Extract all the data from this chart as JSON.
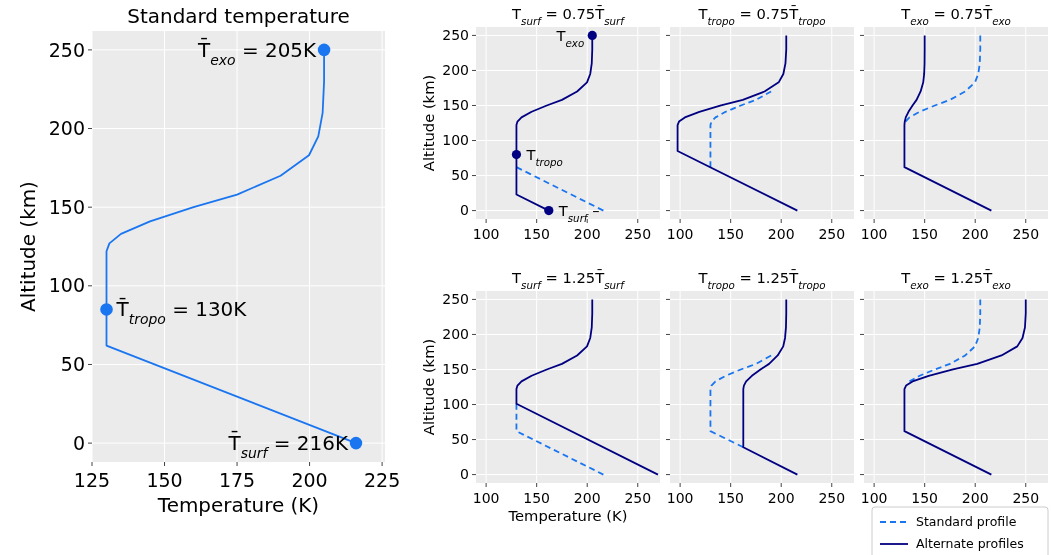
{
  "chart_data": [
    {
      "type": "line",
      "title": "Standard temperature",
      "xlabel": "Temperature (K)",
      "ylabel": "Altitude (km)",
      "xlim": [
        125,
        226
      ],
      "ylim": [
        -12,
        262
      ],
      "xticks": [
        125,
        150,
        175,
        200,
        225
      ],
      "yticks": [
        0,
        50,
        100,
        150,
        200,
        250
      ],
      "grid": true,
      "series": [
        {
          "color": "#1a75f0",
          "x": [
            216,
            130,
            130,
            131,
            135,
            145,
            160,
            175,
            190,
            199.8,
            203,
            204.5,
            205,
            205
          ],
          "values": [
            0,
            62,
            122,
            127,
            133,
            141,
            150,
            158,
            170,
            183,
            195,
            210,
            230,
            250
          ]
        },
        {
          "type": "scatter",
          "marker": "circle",
          "color": "#1a75f0",
          "x": [
            216,
            130,
            205
          ],
          "values": [
            0,
            85,
            250
          ]
        }
      ],
      "annotations": [
        {
          "text": "T̄$_{surf}$ = 216K",
          "x": 216,
          "y": 0
        },
        {
          "text": "T̄$_{tropo}$ = 130K",
          "x": 130,
          "y": 85
        },
        {
          "text": "T̄$_{exo}$ = 205K",
          "x": 205,
          "y": 250
        }
      ]
    },
    {
      "type": "line",
      "title": "T$_{surf}$ = 0.75T̄$_{surf}$",
      "ylabel": "Altitude (km)",
      "xlim": [
        90,
        272
      ],
      "ylim": [
        -12,
        262
      ],
      "xticks": [
        100,
        150,
        200,
        250
      ],
      "yticks": [
        0,
        50,
        100,
        150,
        200,
        250
      ],
      "grid": true,
      "series": [
        {
          "color": "#1a75f0",
          "line_style": "dashed",
          "x": [
            216,
            130
          ],
          "values": [
            0,
            62
          ]
        },
        {
          "color": "#000080",
          "x": [
            162,
            130,
            130,
            131,
            135,
            145,
            160,
            175,
            190,
            199.8,
            203,
            204.5,
            205,
            205
          ],
          "values": [
            0,
            23,
            122,
            127,
            133,
            141,
            150,
            158,
            170,
            183,
            195,
            210,
            230,
            250
          ]
        },
        {
          "type": "scatter",
          "marker": "circle",
          "color": "#000080",
          "x": [
            162,
            130,
            205
          ],
          "values": [
            0,
            80,
            250
          ]
        }
      ],
      "annotations": [
        {
          "text": "T$_{surf}$–",
          "x": 162,
          "y": 0
        },
        {
          "text": "T$_{tropo}$",
          "x": 130,
          "y": 80
        },
        {
          "text": "T$_{exo}$",
          "x": 205,
          "y": 250
        }
      ]
    },
    {
      "type": "line",
      "title": "T$_{tropo}$ = 0.75T̄$_{tropo}$",
      "xlim": [
        90,
        272
      ],
      "ylim": [
        -12,
        262
      ],
      "xticks": [
        100,
        150,
        200,
        250
      ],
      "yticks": [
        0,
        50,
        100,
        150,
        200,
        250
      ],
      "grid": true,
      "tick_labels": "x",
      "series": [
        {
          "color": "#1a75f0",
          "line_style": "dashed",
          "x": [
            130,
            130,
            131,
            135,
            145,
            160,
            175,
            190
          ],
          "values": [
            62,
            122,
            127,
            133,
            141,
            150,
            158,
            170
          ]
        },
        {
          "color": "#000080",
          "x": [
            216,
            97.5,
            97.5,
            98.9,
            104.7,
            119,
            140.5,
            162,
            183.5,
            197.5,
            202.1,
            204.2,
            205,
            205
          ],
          "values": [
            0,
            85,
            122,
            127,
            133,
            141,
            150,
            158,
            170,
            183,
            195,
            210,
            230,
            250
          ]
        }
      ]
    },
    {
      "type": "line",
      "title": "T$_{exo}$ = 0.75T̄$_{exo}$",
      "xlim": [
        90,
        272
      ],
      "ylim": [
        -12,
        262
      ],
      "xticks": [
        100,
        150,
        200,
        250
      ],
      "yticks": [
        0,
        50,
        100,
        150,
        200,
        250
      ],
      "grid": true,
      "tick_labels": "x",
      "series": [
        {
          "color": "#1a75f0",
          "line_style": "dashed",
          "x": [
            131,
            135,
            145,
            160,
            175,
            190,
            199.8,
            203,
            204.5,
            205,
            205
          ],
          "values": [
            127,
            133,
            141,
            150,
            158,
            170,
            183,
            195,
            210,
            230,
            250
          ]
        },
        {
          "color": "#000080",
          "x": [
            216,
            130,
            130,
            130.3,
            131.3,
            134,
            138,
            142,
            146,
            148.6,
            149.5,
            149.9,
            150,
            150
          ],
          "values": [
            0,
            62,
            122,
            127,
            133,
            141,
            150,
            158,
            170,
            183,
            195,
            210,
            230,
            250
          ]
        }
      ]
    },
    {
      "type": "line",
      "title": "T$_{surf}$ = 1.25T̄$_{surf}$",
      "xlabel": "Temperature (K)",
      "ylabel": "Altitude (km)",
      "xlim": [
        90,
        272
      ],
      "ylim": [
        -12,
        262
      ],
      "xticks": [
        100,
        150,
        200,
        250
      ],
      "yticks": [
        0,
        50,
        100,
        150,
        200,
        250
      ],
      "grid": true,
      "series": [
        {
          "color": "#1a75f0",
          "line_style": "dashed",
          "x": [
            216,
            130,
            130
          ],
          "values": [
            0,
            62,
            101
          ]
        },
        {
          "color": "#000080",
          "x": [
            270,
            130,
            130,
            131,
            135,
            145,
            160,
            175,
            190,
            199.8,
            203,
            204.5,
            205,
            205
          ],
          "values": [
            0,
            101,
            122,
            127,
            133,
            141,
            150,
            158,
            170,
            183,
            195,
            210,
            230,
            250
          ]
        }
      ]
    },
    {
      "type": "line",
      "title": "T$_{tropo}$ = 1.25T̄$_{tropo}$",
      "xlim": [
        90,
        272
      ],
      "ylim": [
        -12,
        262
      ],
      "xticks": [
        100,
        150,
        200,
        250
      ],
      "yticks": [
        0,
        50,
        100,
        150,
        200,
        250
      ],
      "grid": true,
      "tick_labels": "x",
      "series": [
        {
          "color": "#1a75f0",
          "line_style": "dashed",
          "x": [
            162.5,
            130,
            130,
            131,
            135,
            145,
            160,
            175,
            190
          ],
          "values": [
            39,
            62,
            122,
            127,
            133,
            141,
            150,
            158,
            170
          ]
        },
        {
          "color": "#000080",
          "x": [
            216,
            162.5,
            162.5,
            163.1,
            165.3,
            171,
            179.5,
            188,
            196.5,
            202,
            203.8,
            204.7,
            205,
            205
          ],
          "values": [
            0,
            39,
            122,
            127,
            133,
            141,
            150,
            158,
            170,
            183,
            195,
            210,
            230,
            250
          ]
        }
      ]
    },
    {
      "type": "line",
      "title": "T$_{exo}$ = 1.25T̄$_{exo}$",
      "xlim": [
        90,
        272
      ],
      "ylim": [
        -12,
        262
      ],
      "xticks": [
        100,
        150,
        200,
        250
      ],
      "yticks": [
        0,
        50,
        100,
        150,
        200,
        250
      ],
      "grid": true,
      "tick_labels": "x",
      "legend": "bottom right",
      "series": [
        {
          "name": "Standard profile",
          "color": "#1a75f0",
          "line_style": "dashed",
          "x": [
            135,
            145,
            160,
            175,
            190,
            199.8,
            203,
            204.5,
            205,
            205
          ],
          "values": [
            133,
            141,
            150,
            158,
            170,
            183,
            195,
            210,
            230,
            250
          ]
        },
        {
          "name": "Alternate profiles",
          "color": "#000080",
          "x": [
            216,
            130,
            130,
            131.6,
            138,
            154,
            178,
            202,
            226,
            241.6,
            246.8,
            249.2,
            250,
            250
          ],
          "values": [
            0,
            62,
            122,
            127,
            133,
            141,
            150,
            158,
            170,
            183,
            195,
            210,
            230,
            250
          ]
        }
      ]
    }
  ]
}
